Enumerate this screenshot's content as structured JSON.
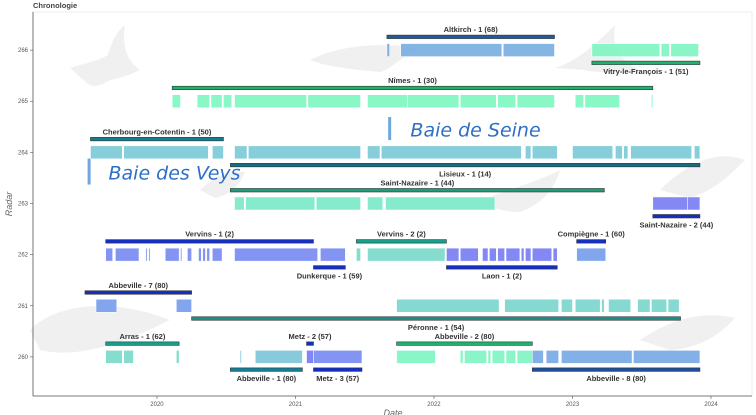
{
  "chart_data": {
    "type": "timeline",
    "title": "Chronologie",
    "xlabel": "Date",
    "ylabel": "Radar",
    "xlim": [
      2019.105,
      2024.296
    ],
    "ylim": [
      259.235,
      266.745
    ],
    "xticks": [
      2020,
      2021,
      2022,
      2023,
      2024
    ],
    "yticks": [
      260,
      261,
      262,
      263,
      264,
      265,
      266
    ],
    "grid": false,
    "annotations": [
      {
        "text": "Baie des Veys",
        "x": 2019.65,
        "y": 263.61,
        "line_x": 2019.51,
        "line_y": [
          263.37,
          263.88
        ]
      },
      {
        "text": "Baie de Seine",
        "x": 2021.83,
        "y": 264.45,
        "line_x": 2021.68,
        "line_y": [
          264.24,
          264.69
        ]
      }
    ],
    "deployments": [
      {
        "label": "Altkirch - 1 (68)",
        "row": 266,
        "start": 2021.66,
        "end": 2022.87,
        "label_pos": "above",
        "bar_color": "#1f5b9a",
        "fill_color": "#7fb2e2",
        "segments": [
          [
            2021.66,
            2021.68
          ],
          [
            2021.76,
            2022.49
          ],
          [
            2022.5,
            2022.87
          ]
        ]
      },
      {
        "label": "Vitry-le-François - 1 (51)",
        "row": 266,
        "start": 2023.14,
        "end": 2023.92,
        "label_pos": "below",
        "bar_color": "#22b06e",
        "fill_color": "#84f5c4",
        "segments": [
          [
            2023.14,
            2023.63
          ],
          [
            2023.64,
            2023.7
          ],
          [
            2023.71,
            2023.91
          ]
        ]
      },
      {
        "label": "Nîmes - 1 (30)",
        "row": 265,
        "start": 2020.11,
        "end": 2023.58,
        "label_pos": "above",
        "bar_color": "#22b06e",
        "fill_color": "#84f7c4",
        "segments": [
          [
            2020.11,
            2020.17
          ],
          [
            2020.29,
            2020.38
          ],
          [
            2020.39,
            2020.47
          ],
          [
            2020.48,
            2020.54
          ],
          [
            2020.56,
            2021.08
          ],
          [
            2021.09,
            2021.47
          ],
          [
            2021.52,
            2021.81
          ],
          [
            2021.81,
            2022.18
          ],
          [
            2022.19,
            2022.45
          ],
          [
            2022.46,
            2022.59
          ],
          [
            2022.6,
            2022.87
          ],
          [
            2023.02,
            2023.08
          ],
          [
            2023.09,
            2023.34
          ],
          [
            2023.57,
            2023.58
          ]
        ]
      },
      {
        "label": "Cherbourg-en-Cotentin - 1 (50)",
        "row": 264,
        "start": 2019.52,
        "end": 2020.48,
        "label_pos": "above",
        "bar_color": "#167d8e",
        "fill_color": "#80ccd8",
        "segments": [
          [
            2019.52,
            2019.75
          ],
          [
            2019.76,
            2020.37
          ],
          [
            2020.4,
            2020.48
          ]
        ]
      },
      {
        "label": "Lisieux - 1 (14)",
        "row": 264,
        "start": 2020.53,
        "end": 2023.92,
        "label_pos": "below",
        "bar_color": "#166c80",
        "fill_color": "#80ccd8",
        "segments": [
          [
            2020.56,
            2020.65
          ],
          [
            2020.66,
            2021.47
          ],
          [
            2021.52,
            2021.61
          ],
          [
            2021.62,
            2022.63
          ],
          [
            2022.66,
            2022.7
          ],
          [
            2022.71,
            2022.89
          ],
          [
            2023.0,
            2023.29
          ],
          [
            2023.31,
            2023.36
          ],
          [
            2023.37,
            2023.4
          ],
          [
            2023.42,
            2023.86
          ],
          [
            2023.88,
            2023.92
          ]
        ]
      },
      {
        "label": "Saint-Nazaire - 1 (44)",
        "row": 263,
        "start": 2020.53,
        "end": 2023.23,
        "label_pos": "above",
        "bar_color": "#1e9e78",
        "fill_color": "#80eacb",
        "segments": [
          [
            2020.56,
            2020.63
          ],
          [
            2020.64,
            2021.14
          ],
          [
            2021.15,
            2021.47
          ],
          [
            2021.52,
            2021.63
          ],
          [
            2021.65,
            2022.44
          ]
        ]
      },
      {
        "label": "Saint-Nazaire - 2 (44)",
        "row": 263,
        "start": 2023.58,
        "end": 2023.92,
        "label_pos": "below",
        "bar_color": "#1430c4",
        "fill_color": "#7d82f4",
        "segments": [
          [
            2023.58,
            2023.83
          ],
          [
            2023.83,
            2023.92
          ]
        ]
      },
      {
        "label": "Vervins - 1 (2)",
        "row": 262,
        "start": 2019.63,
        "end": 2021.13,
        "label_pos": "above",
        "bar_color": "#1430c4",
        "fill_color": "#7d8ff2",
        "segments": [
          [
            2019.63,
            2019.68
          ],
          [
            2019.7,
            2019.87
          ],
          [
            2019.92,
            2019.93
          ],
          [
            2019.94,
            2019.95
          ],
          [
            2020.06,
            2020.16
          ],
          [
            2020.17,
            2020.18
          ],
          [
            2020.22,
            2020.25
          ],
          [
            2020.3,
            2020.32
          ],
          [
            2020.33,
            2020.35
          ],
          [
            2020.36,
            2020.38
          ],
          [
            2020.4,
            2020.47
          ],
          [
            2020.56,
            2021.16
          ],
          [
            2021.18,
            2021.36
          ]
        ]
      },
      {
        "label": "Dunkerque - 1 (59)",
        "row": 262,
        "start": 2021.13,
        "end": 2021.36,
        "label_pos": "below",
        "bar_color": "#1430c4",
        "fill_color": "#7d8ff2",
        "segments": []
      },
      {
        "label": "Vervins - 2 (2)",
        "row": 262,
        "start": 2021.44,
        "end": 2022.09,
        "label_pos": "above",
        "bar_color": "#1a9e8a",
        "fill_color": "#80dccc",
        "segments": [
          [
            2021.44,
            2021.47
          ],
          [
            2021.52,
            2022.08
          ]
        ]
      },
      {
        "label": "Laon - 1 (2)",
        "row": 262,
        "start": 2022.09,
        "end": 2022.89,
        "label_pos": "below",
        "bar_color": "#1430c4",
        "fill_color": "#7d82f4",
        "segments": [
          [
            2022.09,
            2022.18
          ],
          [
            2022.19,
            2022.32
          ],
          [
            2022.35,
            2022.39
          ],
          [
            2022.4,
            2022.45
          ],
          [
            2022.46,
            2022.51
          ],
          [
            2022.52,
            2022.62
          ],
          [
            2022.63,
            2022.65
          ],
          [
            2022.66,
            2022.7
          ],
          [
            2022.71,
            2022.85
          ],
          [
            2022.86,
            2022.89
          ]
        ]
      },
      {
        "label": "Compiègne - 1 (60)",
        "row": 262,
        "start": 2023.03,
        "end": 2023.24,
        "label_pos": "above",
        "bar_color": "#1430c4",
        "fill_color": "#7ca2ee",
        "segments": [
          [
            2023.03,
            2023.24
          ]
        ]
      },
      {
        "label": "Abbeville - 7 (80)",
        "row": 261,
        "start": 2019.48,
        "end": 2020.25,
        "label_pos": "above",
        "bar_color": "#1430c4",
        "fill_color": "#7ca2ee",
        "segments": [
          [
            2019.56,
            2019.71
          ],
          [
            2020.14,
            2020.25
          ]
        ]
      },
      {
        "label": "Péronne - 1 (54)",
        "row": 261,
        "start": 2020.25,
        "end": 2023.78,
        "label_pos": "below",
        "bar_color": "#1a8f88",
        "fill_color": "#80d8cf",
        "segments": [
          [
            2021.73,
            2022.47
          ],
          [
            2022.51,
            2022.9
          ],
          [
            2022.92,
            2023.0
          ],
          [
            2023.02,
            2023.2
          ],
          [
            2023.21,
            2023.23
          ],
          [
            2023.26,
            2023.42
          ],
          [
            2023.47,
            2023.56
          ],
          [
            2023.57,
            2023.68
          ],
          [
            2023.69,
            2023.77
          ]
        ]
      },
      {
        "label": "Arras - 1 (62)",
        "row": 260,
        "start": 2019.63,
        "end": 2020.16,
        "label_pos": "above",
        "bar_color": "#1a9e8a",
        "fill_color": "#80dccc",
        "segments": [
          [
            2019.63,
            2019.75
          ],
          [
            2019.76,
            2019.83
          ],
          [
            2020.14,
            2020.16
          ]
        ]
      },
      {
        "label": "Abbeville - 1 (80)",
        "row": 260,
        "start": 2020.53,
        "end": 2021.05,
        "label_pos": "below",
        "bar_color": "#167d95",
        "fill_color": "#80c8da",
        "segments": [
          [
            2020.6,
            2020.61
          ],
          [
            2020.71,
            2021.05
          ]
        ]
      },
      {
        "label": "Metz - 2 (57)",
        "row": 260,
        "start": 2021.08,
        "end": 2021.13,
        "label_pos": "above",
        "bar_color": "#1430c4",
        "fill_color": "#7d7ff4",
        "segments": [
          [
            2021.08,
            2021.13
          ]
        ]
      },
      {
        "label": "Metz - 3 (57)",
        "row": 260,
        "start": 2021.13,
        "end": 2021.48,
        "label_pos": "below",
        "bar_color": "#1430c4",
        "fill_color": "#7d8ff2",
        "segments": [
          [
            2021.13,
            2021.48
          ]
        ]
      },
      {
        "label": "Abbeville - 2 (80)",
        "row": 260,
        "start": 2021.73,
        "end": 2022.71,
        "label_pos": "above",
        "bar_color": "#22b06e",
        "fill_color": "#84f5c4",
        "segments": [
          [
            2021.73,
            2022.01
          ],
          [
            2022.19,
            2022.21
          ],
          [
            2022.22,
            2022.38
          ],
          [
            2022.39,
            2022.41
          ],
          [
            2022.42,
            2022.51
          ],
          [
            2022.52,
            2022.59
          ],
          [
            2022.6,
            2022.71
          ]
        ]
      },
      {
        "label": "Abbeville - 8 (80)",
        "row": 260,
        "start": 2022.71,
        "end": 2023.92,
        "label_pos": "below",
        "bar_color": "#1f4e9a",
        "fill_color": "#7cace6",
        "segments": [
          [
            2022.71,
            2022.79
          ],
          [
            2022.81,
            2022.9
          ],
          [
            2022.92,
            2023.43
          ],
          [
            2023.44,
            2023.92
          ]
        ]
      }
    ]
  }
}
